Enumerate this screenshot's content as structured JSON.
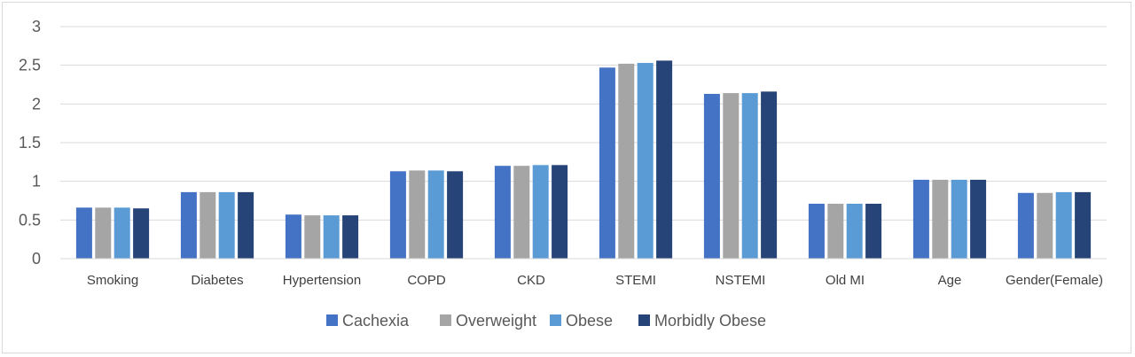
{
  "chart_data": {
    "type": "bar",
    "title": "",
    "xlabel": "",
    "ylabel": "",
    "ylim": [
      0,
      3
    ],
    "yticks": [
      "0",
      "0.5",
      "1",
      "1.5",
      "2",
      "2.5",
      "3"
    ],
    "grid": true,
    "legend_position": "bottom",
    "categories": [
      "Smoking",
      "Diabetes",
      "Hypertension",
      "COPD",
      "CKD",
      "STEMI",
      "NSTEMI",
      "Old MI",
      "Age",
      "Gender(Female)"
    ],
    "series": [
      {
        "name": "Cachexia",
        "color": "#4472c4",
        "values": [
          0.66,
          0.86,
          0.57,
          1.13,
          1.2,
          2.47,
          2.13,
          0.71,
          1.02,
          0.85
        ]
      },
      {
        "name": "Overweight",
        "color": "#a5a5a5",
        "values": [
          0.66,
          0.86,
          0.56,
          1.14,
          1.2,
          2.52,
          2.14,
          0.71,
          1.02,
          0.85
        ]
      },
      {
        "name": "Obese",
        "color": "#5b9bd5",
        "values": [
          0.66,
          0.86,
          0.56,
          1.14,
          1.21,
          2.53,
          2.14,
          0.71,
          1.02,
          0.86
        ]
      },
      {
        "name": "Morbidly Obese",
        "color": "#264478",
        "values": [
          0.65,
          0.86,
          0.56,
          1.13,
          1.21,
          2.56,
          2.16,
          0.71,
          1.02,
          0.86
        ]
      }
    ]
  }
}
